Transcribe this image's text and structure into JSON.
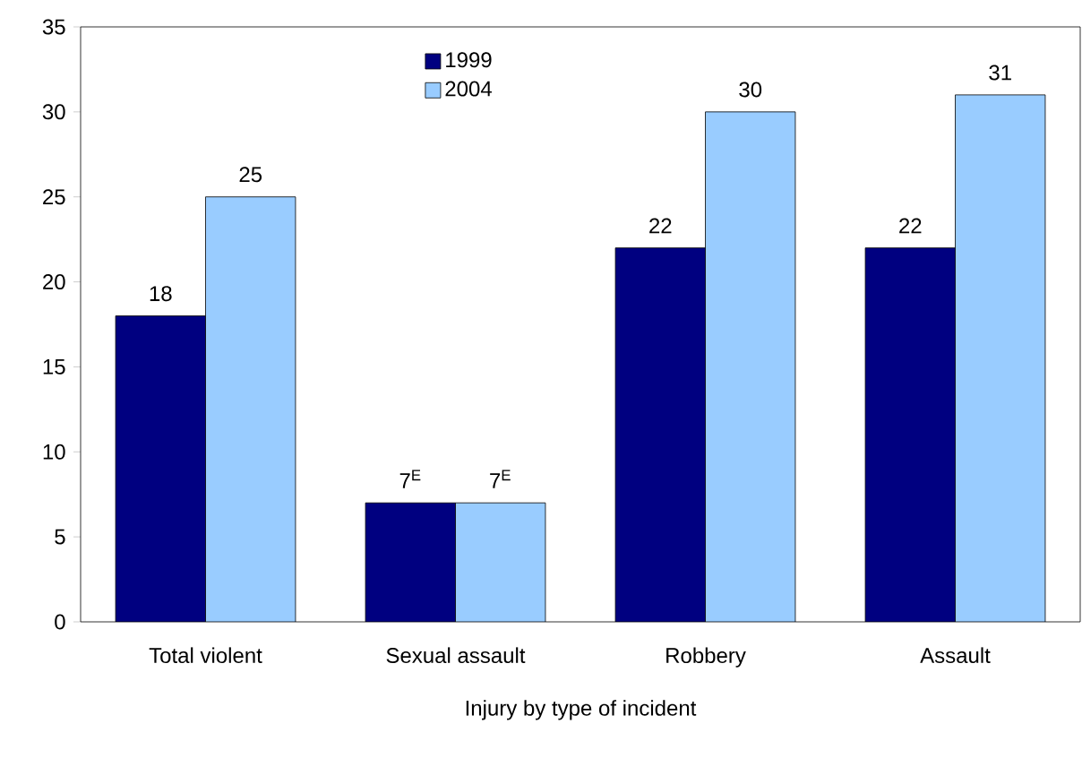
{
  "chart_data": {
    "type": "bar",
    "xlabel": "Injury by type of incident",
    "categories": [
      "Total violent",
      "Sexual assault",
      "Robbery",
      "Assault"
    ],
    "series": [
      {
        "name": "1999",
        "color": "#000080",
        "values": [
          18,
          7,
          22,
          22
        ],
        "value_labels": [
          "18",
          "7$^{E}$",
          "22",
          "22"
        ]
      },
      {
        "name": "2004",
        "color": "#99ccff",
        "values": [
          25,
          7,
          30,
          31
        ],
        "value_labels": [
          "25",
          "7$^{E}$",
          "30",
          "31"
        ]
      }
    ],
    "ylim": [
      0,
      35
    ],
    "yticks": [
      0,
      5,
      10,
      15,
      20,
      25,
      30,
      35
    ],
    "grid": false,
    "legend": "top"
  }
}
